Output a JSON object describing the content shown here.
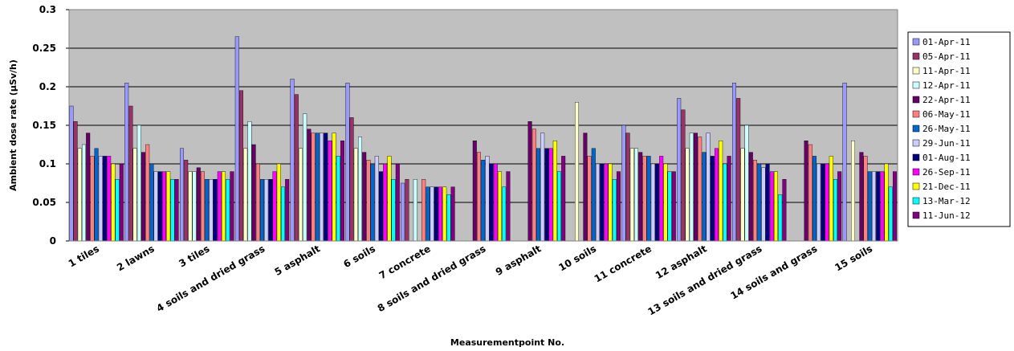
{
  "chart_data": {
    "type": "bar",
    "title": "",
    "xlabel": "Measurementpoint No.",
    "ylabel": "Ambient dose rate (μSv/h)",
    "ylim": [
      0,
      0.3
    ],
    "yticks": [
      "0",
      "0.05",
      "0.1",
      "0.15",
      "0.2",
      "0.25",
      "0.3"
    ],
    "grid": true,
    "legend_position": "right",
    "categories": [
      "1 tiles",
      "2 lawns",
      "3 tiles",
      "4 soils and dried grass",
      "5 asphalt",
      "6 soils",
      "7 concrete",
      "8 soils and dried grass",
      "9 asphalt",
      "10 soils",
      "11 concrete",
      "12 asphalt",
      "13 soils and dried grass",
      "14 soils and grass",
      "15 soils"
    ],
    "series": [
      {
        "name": "01-Apr-11",
        "color": "#9999ff",
        "values": [
          0.175,
          0.205,
          0.12,
          0.265,
          0.21,
          0.205,
          0.075,
          null,
          null,
          null,
          0.15,
          0.185,
          0.205,
          null,
          0.205
        ]
      },
      {
        "name": "05-Apr-11",
        "color": "#993366",
        "values": [
          0.155,
          0.175,
          0.105,
          0.195,
          0.19,
          0.16,
          0.08,
          null,
          null,
          null,
          0.14,
          0.17,
          0.185,
          null,
          null
        ]
      },
      {
        "name": "11-Apr-11",
        "color": "#ffffcc",
        "values": [
          0.12,
          0.12,
          0.09,
          0.12,
          0.12,
          0.12,
          null,
          null,
          null,
          0.18,
          0.12,
          0.12,
          0.12,
          null,
          0.13
        ]
      },
      {
        "name": "12-Apr-11",
        "color": "#ccffff",
        "values": [
          0.125,
          0.15,
          0.09,
          0.155,
          0.165,
          0.135,
          0.08,
          null,
          null,
          null,
          0.12,
          0.14,
          0.15,
          null,
          null
        ]
      },
      {
        "name": "22-Apr-11",
        "color": "#660066",
        "values": [
          0.14,
          0.115,
          0.095,
          0.125,
          0.145,
          0.115,
          null,
          0.13,
          0.155,
          0.14,
          0.115,
          0.14,
          0.115,
          0.13,
          0.115
        ]
      },
      {
        "name": "06-May-11",
        "color": "#ff8080",
        "values": [
          0.11,
          0.125,
          0.09,
          0.1,
          0.14,
          0.105,
          0.08,
          0.115,
          0.145,
          0.11,
          0.11,
          0.135,
          0.105,
          0.125,
          0.11
        ]
      },
      {
        "name": "26-May-11",
        "color": "#0066cc",
        "values": [
          0.12,
          0.1,
          0.08,
          0.08,
          0.14,
          0.1,
          0.07,
          0.105,
          0.12,
          0.12,
          0.11,
          0.115,
          0.1,
          0.11,
          0.09
        ]
      },
      {
        "name": "29-Jun-11",
        "color": "#ccccff",
        "values": [
          0.11,
          0.09,
          0.08,
          0.08,
          0.14,
          0.11,
          0.07,
          0.11,
          0.14,
          0.1,
          0.1,
          0.14,
          0.095,
          0.1,
          0.09
        ]
      },
      {
        "name": "01-Aug-11",
        "color": "#000080",
        "values": [
          0.11,
          0.09,
          0.08,
          0.08,
          0.14,
          0.09,
          0.07,
          0.1,
          0.12,
          0.1,
          0.1,
          0.11,
          0.1,
          0.1,
          0.09
        ]
      },
      {
        "name": "26-Sep-11",
        "color": "#ff00ff",
        "values": [
          0.11,
          0.09,
          0.09,
          0.09,
          0.13,
          0.1,
          0.07,
          0.1,
          0.12,
          0.1,
          0.11,
          0.12,
          0.09,
          0.1,
          0.09
        ]
      },
      {
        "name": "21-Dec-11",
        "color": "#ffff00",
        "values": [
          0.1,
          0.09,
          0.09,
          0.1,
          0.14,
          0.11,
          0.07,
          0.09,
          0.13,
          0.1,
          0.1,
          0.13,
          0.09,
          0.11,
          0.1
        ]
      },
      {
        "name": "13-Mar-12",
        "color": "#00ffff",
        "values": [
          0.08,
          0.08,
          0.08,
          0.07,
          0.11,
          0.08,
          0.06,
          0.07,
          0.09,
          0.08,
          0.09,
          0.1,
          0.06,
          0.08,
          0.07
        ]
      },
      {
        "name": "11-Jun-12",
        "color": "#800080",
        "values": [
          0.1,
          0.08,
          0.09,
          0.08,
          0.13,
          0.1,
          0.07,
          0.09,
          0.11,
          0.09,
          0.09,
          0.11,
          0.08,
          0.09,
          0.09
        ]
      }
    ]
  }
}
